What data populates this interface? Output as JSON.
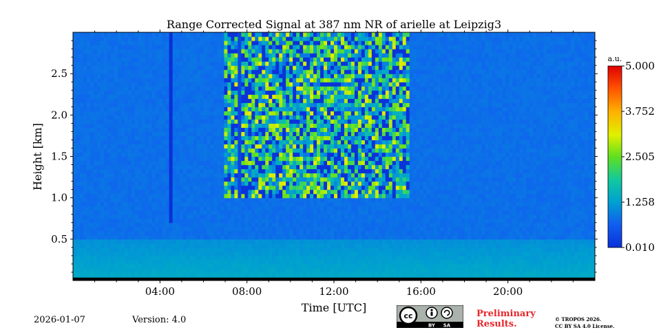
{
  "chart_data": {
    "type": "heatmap",
    "title": "Range Corrected Signal at 387 nm NR of arielle at Leipzig3",
    "xlabel": "Time [UTC]",
    "ylabel": "Height [km]",
    "xlim": [
      0,
      24
    ],
    "ylim": [
      0,
      3.0
    ],
    "x_ticks": [
      {
        "value": 4,
        "label": "04:00"
      },
      {
        "value": 8,
        "label": "08:00"
      },
      {
        "value": 12,
        "label": "12:00"
      },
      {
        "value": 16,
        "label": "16:00"
      },
      {
        "value": 20,
        "label": "20:00"
      }
    ],
    "y_ticks": [
      {
        "value": 0.5,
        "label": "0.5"
      },
      {
        "value": 1.0,
        "label": "1.0"
      },
      {
        "value": 1.5,
        "label": "1.5"
      },
      {
        "value": 2.0,
        "label": "2.0"
      },
      {
        "value": 2.5,
        "label": "2.5"
      }
    ],
    "colorbar": {
      "unit": "a.u.",
      "range": [
        0.01,
        5.0
      ],
      "ticks": [
        "0.010",
        "1.258",
        "2.505",
        "3.752",
        "5.000"
      ],
      "colormap": "jet"
    },
    "background_level": 0.8,
    "near_ground_level": 1.1,
    "features": [
      {
        "name": "dark vertical stripe",
        "time_hours": 4.5,
        "height_from_km": 0.7,
        "height_to_km": 3.0,
        "level": 0.01
      },
      {
        "name": "faint dark stripe",
        "time_hours": 7.7,
        "height_from_km": 1.0,
        "height_to_km": 3.0,
        "level": 0.3
      },
      {
        "name": "noisy high-signal region",
        "time_from_hours": 7.0,
        "time_to_hours": 15.5,
        "height_from_km": 1.0,
        "height_to_km": 3.0,
        "level": 2.0
      }
    ]
  },
  "footer": {
    "date": "2026-01-07",
    "version": "Version: 4.0",
    "preliminary_line1": "Preliminary",
    "preliminary_line2": "Results.",
    "copyright_line1": "© TROPOS 2026.",
    "copyright_line2": "CC BY SA 4.0 License.",
    "license_badge": {
      "cc": "cc",
      "by": "BY",
      "sa": "SA"
    }
  },
  "colors": {
    "preliminary": "#e8262a",
    "badge_bg": "#aab2ab",
    "badge_dark": "#000000"
  }
}
